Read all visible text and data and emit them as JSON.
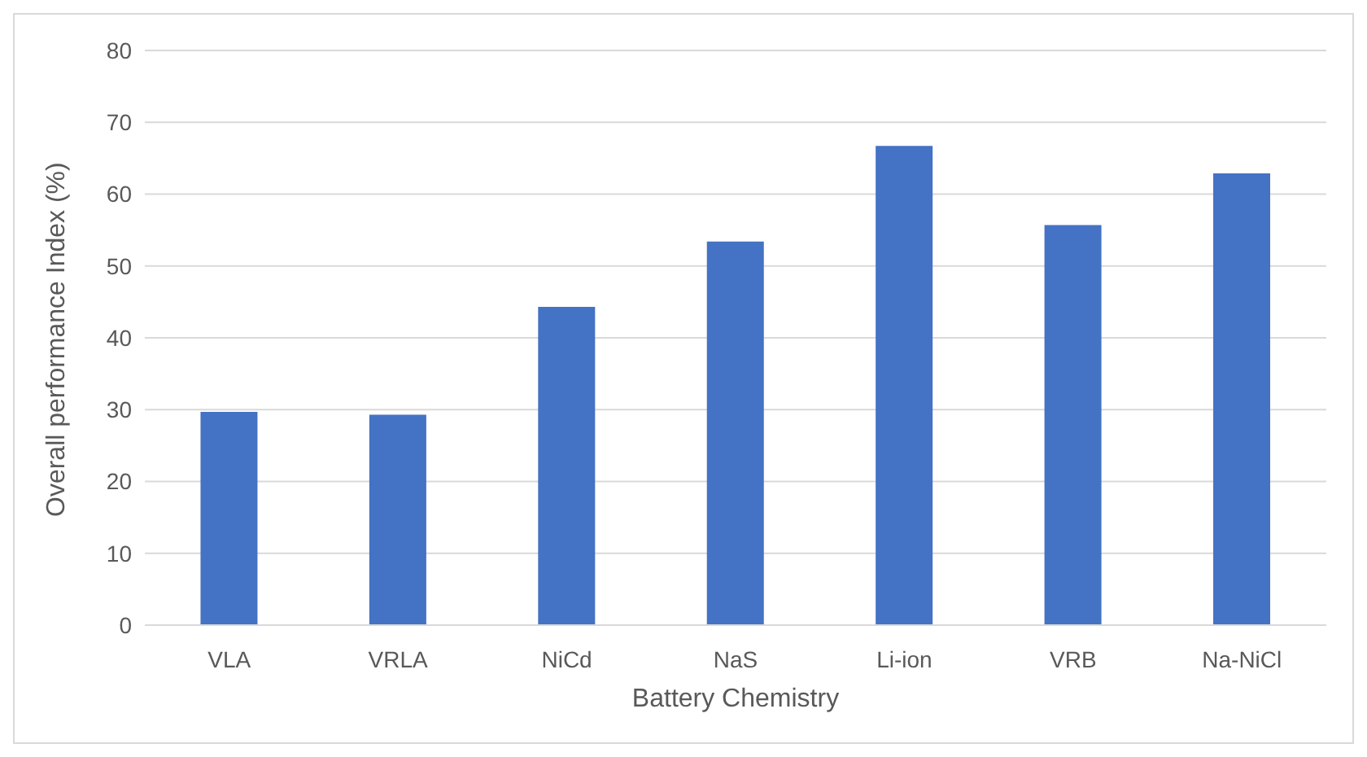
{
  "chart_data": {
    "type": "bar",
    "xlabel": "Battery Chemistry",
    "ylabel": "Overall performance Index (%)",
    "categories": [
      "VLA",
      "VRLA",
      "NiCd",
      "NaS",
      "Li-ion",
      "VRB",
      "Na-NiCl"
    ],
    "values": [
      29.7,
      29.3,
      44.3,
      53.4,
      66.7,
      55.7,
      62.9
    ],
    "color": "#4472c4",
    "ylim": [
      0,
      80
    ],
    "yticks": [
      0,
      10,
      20,
      30,
      40,
      50,
      60,
      70,
      80
    ],
    "grid": "y",
    "legend": false
  }
}
